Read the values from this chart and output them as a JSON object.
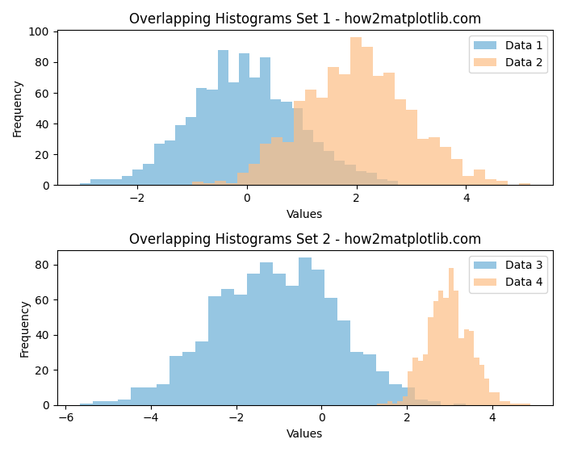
{
  "title1": "Overlapping Histograms Set 1 - how2matplotlib.com",
  "title2": "Overlapping Histograms Set 2 - how2matplotlib.com",
  "xlabel": "Values",
  "ylabel": "Frequency",
  "color1": "#6aaed6",
  "color2": "#fdbe85",
  "alpha": 0.7,
  "bins": 30,
  "seed": 0,
  "data1_mean": 0,
  "data1_std": 1,
  "data1_size": 1000,
  "data2_mean": 2,
  "data2_std": 1,
  "data2_size": 1000,
  "data3_mean": -1,
  "data3_std": 1.5,
  "data3_size": 1000,
  "data4_mean": 3,
  "data4_std": 0.5,
  "data4_size": 700,
  "legend1_labels": [
    "Data 1",
    "Data 2"
  ],
  "legend2_labels": [
    "Data 3",
    "Data 4"
  ]
}
